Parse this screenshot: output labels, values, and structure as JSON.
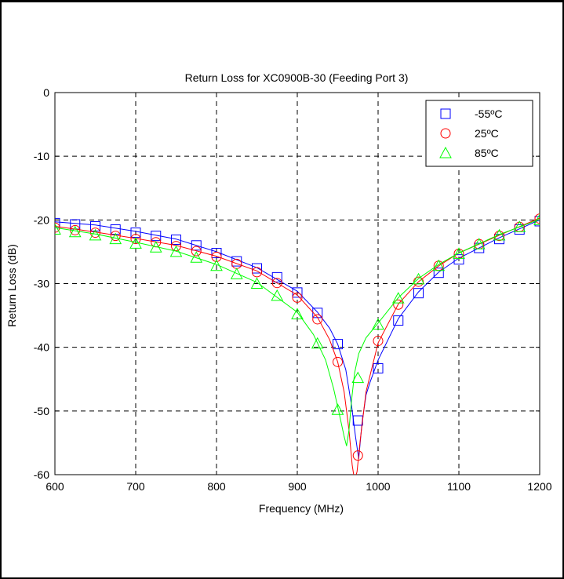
{
  "chart_data": {
    "type": "line",
    "title": "Return Loss for XC0900B-30 (Feeding Port 3)",
    "xlabel": "Frequency (MHz)",
    "ylabel": "Return Loss (dB)",
    "xlim": [
      600,
      1200
    ],
    "ylim": [
      -60,
      0
    ],
    "xticks": [
      600,
      700,
      800,
      900,
      1000,
      1100,
      1200
    ],
    "xtick_labels": [
      "600",
      "700",
      "800",
      "900",
      "1000",
      "1100",
      "1200"
    ],
    "yticks": [
      0,
      -10,
      -20,
      -30,
      -40,
      -50,
      -60
    ],
    "ytick_labels": [
      "0",
      "-10",
      "-20",
      "-30",
      "-40",
      "-50",
      "-60"
    ],
    "grid": true,
    "legend_position": "top-right",
    "series": [
      {
        "name": "-55ºC",
        "color": "#0000ff",
        "marker": "square",
        "markers": {
          "x": [
            600,
            625,
            650,
            675,
            700,
            725,
            750,
            775,
            800,
            825,
            850,
            875,
            900,
            925,
            950,
            975,
            1000,
            1025,
            1050,
            1075,
            1100,
            1125,
            1150,
            1175,
            1200
          ],
          "y": [
            -20.5,
            -20.7,
            -21.0,
            -21.5,
            -22.0,
            -22.5,
            -23.1,
            -24.0,
            -25.2,
            -26.5,
            -27.6,
            -29.0,
            -31.4,
            -34.6,
            -39.5,
            -51.5,
            -43.3,
            -35.8,
            -31.5,
            -28.3,
            -26.2,
            -24.4,
            -23.0,
            -21.5,
            -20.2
          ]
        },
        "curve": {
          "x": [
            600,
            650,
            700,
            750,
            800,
            850,
            900,
            925,
            940,
            950,
            960,
            967,
            972,
            976,
            980,
            985,
            990,
            1000,
            1025,
            1050,
            1075,
            1100,
            1150,
            1200
          ],
          "y": [
            -20.3,
            -20.8,
            -21.8,
            -23.0,
            -25.0,
            -27.5,
            -31.2,
            -34.5,
            -37.0,
            -39.5,
            -43.5,
            -49.0,
            -54.0,
            -57.5,
            -52.0,
            -47.5,
            -45.5,
            -42.0,
            -35.5,
            -31.3,
            -28.2,
            -26.0,
            -22.8,
            -20.0
          ]
        }
      },
      {
        "name": "25ºC",
        "color": "#ff0000",
        "marker": "circle",
        "markers": {
          "x": [
            600,
            625,
            650,
            675,
            700,
            725,
            750,
            775,
            800,
            825,
            850,
            875,
            900,
            925,
            950,
            975,
            1000,
            1025,
            1050,
            1075,
            1100,
            1125,
            1150,
            1175,
            1200
          ],
          "y": [
            -21.2,
            -21.6,
            -22.0,
            -22.5,
            -23.0,
            -23.5,
            -24.1,
            -24.9,
            -25.8,
            -26.9,
            -28.2,
            -29.9,
            -32.2,
            -35.6,
            -42.3,
            -57.0,
            -39.0,
            -33.3,
            -29.7,
            -27.2,
            -25.3,
            -23.8,
            -22.5,
            -21.1,
            -19.8
          ]
        },
        "curve": {
          "x": [
            600,
            650,
            700,
            750,
            800,
            850,
            900,
            925,
            940,
            950,
            958,
            964,
            968,
            971,
            974,
            978,
            985,
            1000,
            1025,
            1050,
            1075,
            1100,
            1150,
            1200
          ],
          "y": [
            -21.0,
            -21.9,
            -22.9,
            -24.0,
            -25.7,
            -28.0,
            -31.8,
            -35.3,
            -38.8,
            -42.3,
            -47.0,
            -53.0,
            -58.5,
            -61.0,
            -59.5,
            -54.5,
            -47.0,
            -39.3,
            -33.2,
            -29.7,
            -27.2,
            -25.2,
            -22.4,
            -19.7
          ]
        }
      },
      {
        "name": "85ºC",
        "color": "#00ff00",
        "marker": "triangle",
        "markers": {
          "x": [
            600,
            625,
            650,
            675,
            700,
            725,
            750,
            775,
            800,
            825,
            850,
            875,
            900,
            925,
            950,
            975,
            1000,
            1025,
            1050,
            1075,
            1100,
            1125,
            1150,
            1175,
            1200
          ],
          "y": [
            -21.5,
            -21.9,
            -22.4,
            -23.0,
            -23.7,
            -24.3,
            -25.0,
            -25.9,
            -27.2,
            -28.5,
            -30.0,
            -31.9,
            -34.8,
            -39.4,
            -49.8,
            -44.8,
            -36.4,
            -32.3,
            -29.3,
            -27.2,
            -25.3,
            -23.8,
            -22.4,
            -21.1,
            -20.0
          ]
        },
        "curve": {
          "x": [
            600,
            650,
            700,
            750,
            800,
            850,
            900,
            920,
            935,
            945,
            952,
            958,
            961,
            964,
            967,
            971,
            976,
            985,
            1000,
            1025,
            1050,
            1075,
            1100,
            1150,
            1200
          ],
          "y": [
            -21.2,
            -22.2,
            -23.5,
            -24.9,
            -27.0,
            -29.8,
            -34.5,
            -38.0,
            -42.0,
            -46.5,
            -50.5,
            -54.0,
            -55.5,
            -53.0,
            -48.5,
            -44.0,
            -41.0,
            -38.5,
            -36.2,
            -32.2,
            -29.2,
            -27.0,
            -25.2,
            -22.3,
            -19.9
          ]
        }
      }
    ]
  }
}
